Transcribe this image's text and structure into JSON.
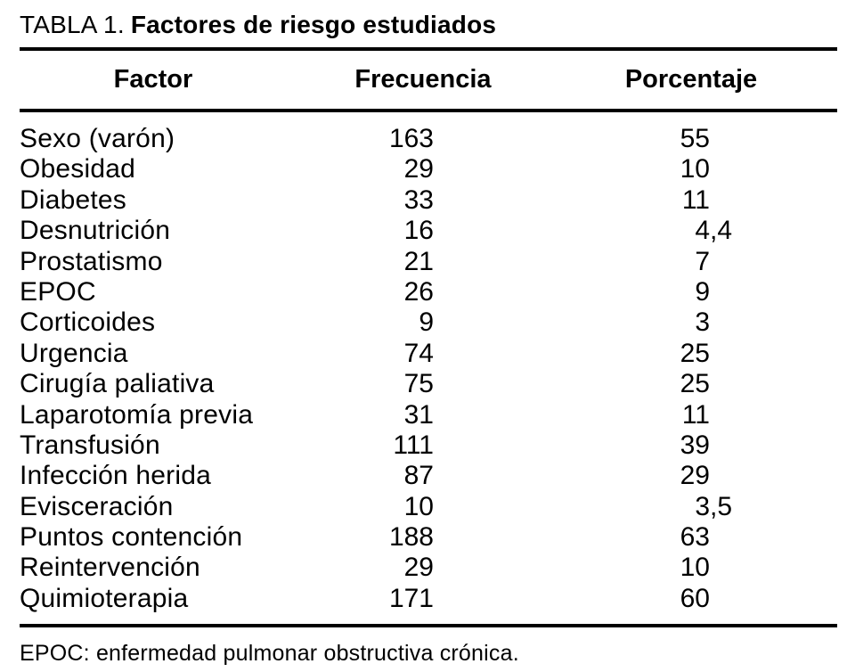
{
  "table": {
    "title_prefix": "TABLA 1.",
    "title": "Factores de riesgo estudiados",
    "columns": [
      "Factor",
      "Frecuencia",
      "Porcentaje"
    ],
    "rows": [
      {
        "factor": "Sexo (varón)",
        "frecuencia": "163",
        "porcentaje": "55"
      },
      {
        "factor": "Obesidad",
        "frecuencia": "29",
        "porcentaje": "10"
      },
      {
        "factor": "Diabetes",
        "frecuencia": "33",
        "porcentaje": "11"
      },
      {
        "factor": "Desnutrición",
        "frecuencia": "16",
        "porcentaje": "4,4"
      },
      {
        "factor": "Prostatismo",
        "frecuencia": "21",
        "porcentaje": "7"
      },
      {
        "factor": "EPOC",
        "frecuencia": "26",
        "porcentaje": "9"
      },
      {
        "factor": "Corticoides",
        "frecuencia": "9",
        "porcentaje": "3"
      },
      {
        "factor": "Urgencia",
        "frecuencia": "74",
        "porcentaje": "25"
      },
      {
        "factor": "Cirugía paliativa",
        "frecuencia": "75",
        "porcentaje": "25"
      },
      {
        "factor": "Laparotomía previa",
        "frecuencia": "31",
        "porcentaje": "11"
      },
      {
        "factor": "Transfusión",
        "frecuencia": "111",
        "porcentaje": "39"
      },
      {
        "factor": "Infección herida",
        "frecuencia": "87",
        "porcentaje": "29"
      },
      {
        "factor": "Evisceración",
        "frecuencia": "10",
        "porcentaje": "3,5"
      },
      {
        "factor": "Puntos contención",
        "frecuencia": "188",
        "porcentaje": "63"
      },
      {
        "factor": "Reintervención",
        "frecuencia": "29",
        "porcentaje": "10"
      },
      {
        "factor": "Quimioterapia",
        "frecuencia": "171",
        "porcentaje": "60"
      }
    ],
    "footnote": "EPOC: enfermedad pulmonar obstructiva crónica.",
    "colors": {
      "text": "#000000",
      "background": "#ffffff",
      "rule": "#000000"
    }
  }
}
